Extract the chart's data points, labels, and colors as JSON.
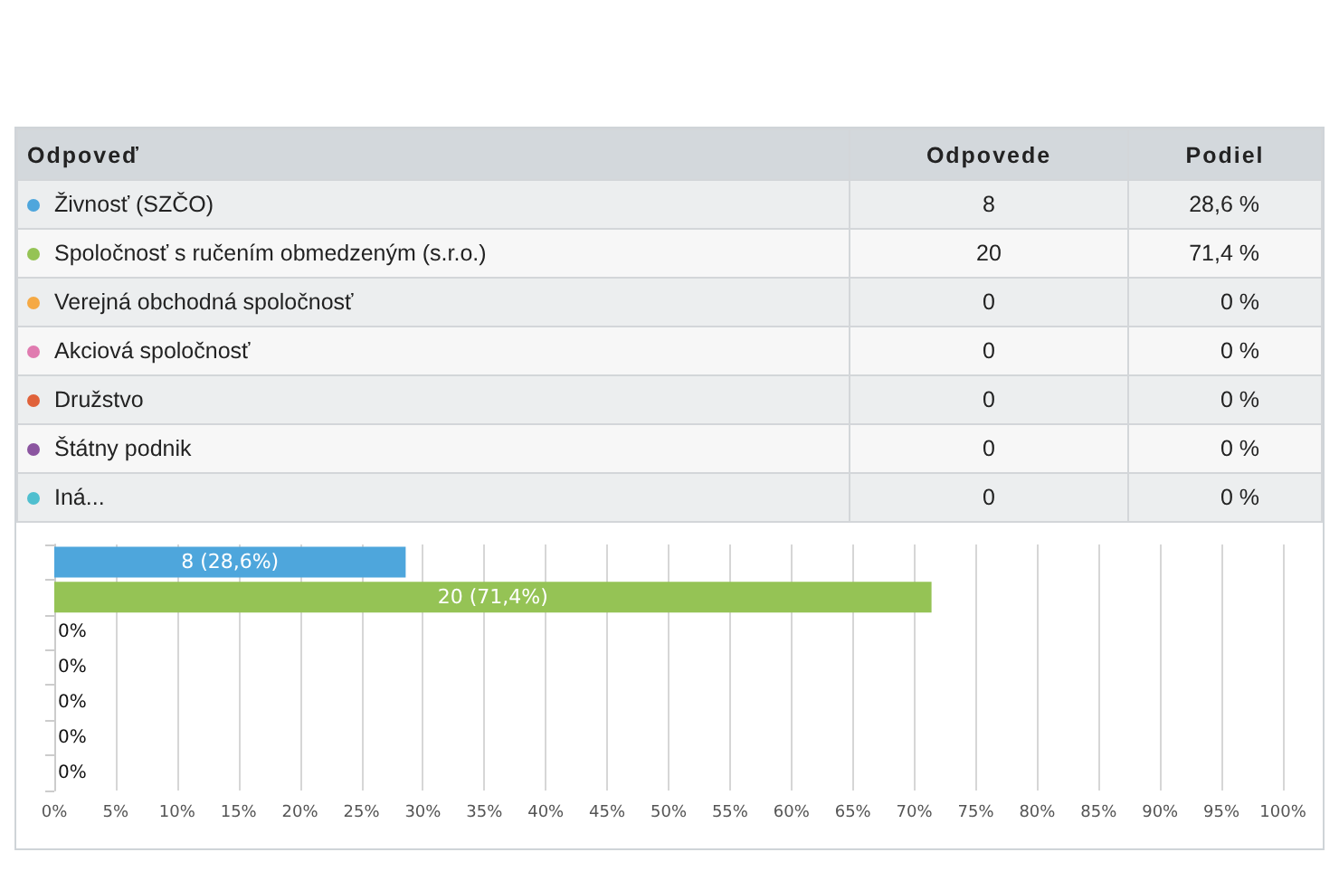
{
  "chart_data": {
    "type": "bar",
    "orientation": "horizontal",
    "stacked": true,
    "legend": "top",
    "categories": [
      null,
      null,
      null,
      null,
      null,
      null,
      null
    ],
    "series": [
      {
        "name": "Živnosť (SZČO)",
        "color": "#4ea6dc",
        "values": [
          28.6,
          null,
          null,
          null,
          null,
          null,
          null
        ],
        "value_labels": [
          "8 (28,6%)",
          null,
          null,
          null,
          null,
          null,
          null
        ]
      },
      {
        "name": "Spoločnosť s ručením obmedzeným (s.r.o.)",
        "color": "#95c355",
        "values": [
          null,
          71.4,
          null,
          null,
          null,
          null,
          null
        ],
        "value_labels": [
          null,
          "20 (71,4%)",
          null,
          null,
          null,
          null,
          null
        ]
      },
      {
        "name": "Verejná obchodná spoločnosť",
        "color": "#f5a944",
        "values": [
          null,
          null,
          0,
          null,
          null,
          null,
          null
        ],
        "value_labels": [
          null,
          null,
          "0%",
          null,
          null,
          null,
          null
        ]
      },
      {
        "name": "Akciová spoločnosť",
        "color": "#e07bb0",
        "values": [
          null,
          null,
          null,
          0,
          null,
          null,
          null
        ],
        "value_labels": [
          null,
          null,
          null,
          "0%",
          null,
          null,
          null
        ]
      },
      {
        "name": "Družstvo",
        "color": "#e0623a",
        "values": [
          null,
          null,
          null,
          null,
          0,
          null,
          null
        ],
        "value_labels": [
          null,
          null,
          null,
          null,
          "0%",
          null,
          null
        ]
      },
      {
        "name": "Štátny podnik",
        "color": "#8b55a0",
        "values": [
          null,
          null,
          null,
          null,
          null,
          0,
          null
        ],
        "value_labels": [
          null,
          null,
          null,
          null,
          null,
          "0%",
          null
        ]
      },
      {
        "name": "Iná...",
        "color": "#4fbfcf",
        "values": [
          null,
          null,
          null,
          null,
          null,
          null,
          0
        ],
        "value_labels": [
          null,
          null,
          null,
          null,
          null,
          null,
          "0%"
        ]
      }
    ],
    "xlim": [
      0,
      100
    ],
    "xticks": [
      {
        "value": 0,
        "label": "0%"
      },
      {
        "value": 5,
        "label": "5%"
      },
      {
        "value": 10,
        "label": "10%"
      },
      {
        "value": 15,
        "label": "15%"
      },
      {
        "value": 20,
        "label": "20%"
      },
      {
        "value": 25,
        "label": "25%"
      },
      {
        "value": 30,
        "label": "30%"
      },
      {
        "value": 35,
        "label": "35%"
      },
      {
        "value": 40,
        "label": "40%"
      },
      {
        "value": 45,
        "label": "45%"
      },
      {
        "value": 50,
        "label": "50%"
      },
      {
        "value": 55,
        "label": "55%"
      },
      {
        "value": 60,
        "label": "60%"
      },
      {
        "value": 65,
        "label": "65%"
      },
      {
        "value": 70,
        "label": "70%"
      },
      {
        "value": 75,
        "label": "75%"
      },
      {
        "value": 80,
        "label": "80%"
      },
      {
        "value": 85,
        "label": "85%"
      },
      {
        "value": 90,
        "label": "90%"
      },
      {
        "value": 95,
        "label": "95%"
      },
      {
        "value": 100,
        "label": "100%"
      }
    ],
    "grid": "x",
    "tick_labels": "x",
    "annotations": [
      "Odpoveď",
      "Odpovede",
      "Podiel",
      "8",
      "28,6 %",
      "20",
      "71,4 %",
      "0",
      "0 %",
      "0",
      "0 %",
      "0",
      "0 %",
      "0",
      "0 %",
      "0",
      "0 %"
    ]
  }
}
